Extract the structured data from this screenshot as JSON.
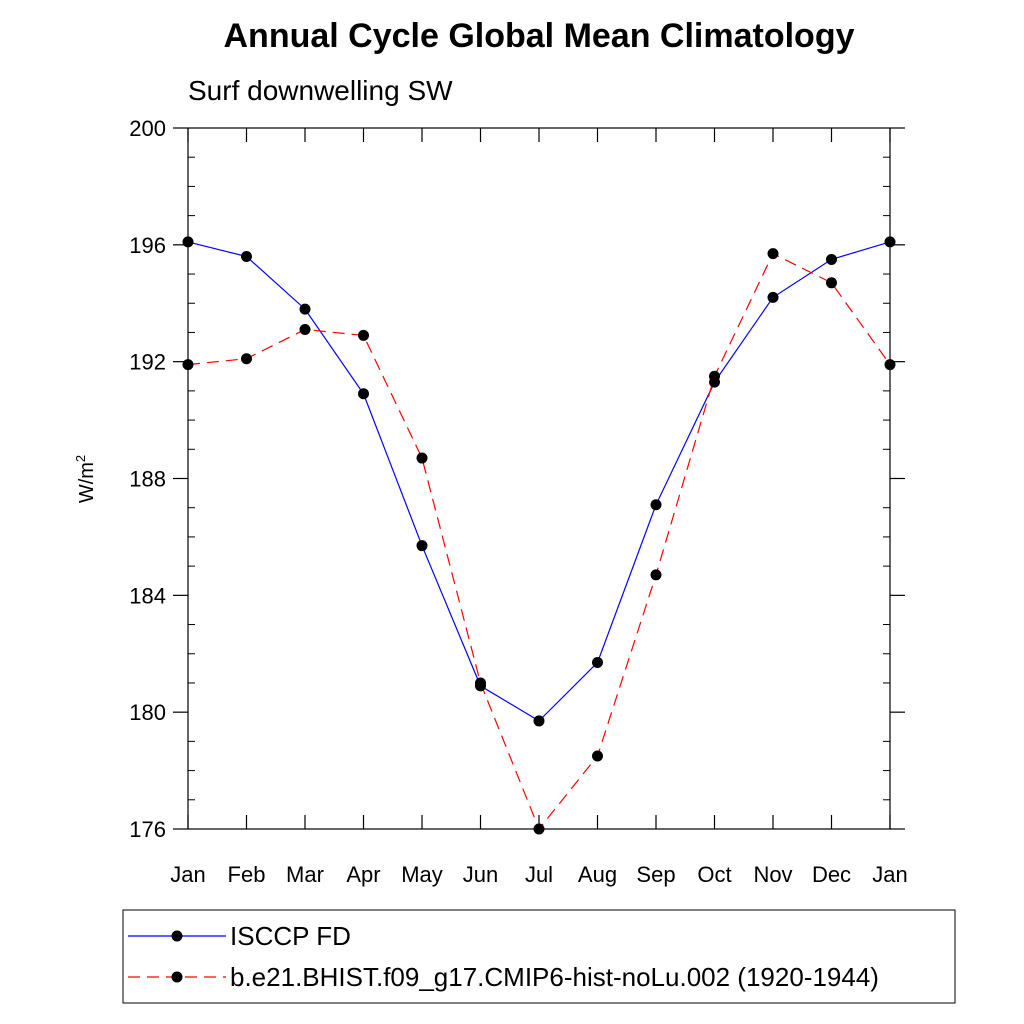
{
  "chart_data": {
    "type": "line",
    "title": "Annual Cycle Global Mean Climatology",
    "subtitle": "Surf downwelling SW",
    "ylabel_base": "W/m",
    "ylabel_sup": "2",
    "xlabel": "",
    "categories": [
      "Jan",
      "Feb",
      "Mar",
      "Apr",
      "May",
      "Jun",
      "Jul",
      "Aug",
      "Sep",
      "Oct",
      "Nov",
      "Dec",
      "Jan"
    ],
    "ylim": [
      176,
      200
    ],
    "yticks": [
      176,
      180,
      184,
      188,
      192,
      196,
      200
    ],
    "grid": false,
    "legend_position": "bottom",
    "series": [
      {
        "name": "ISCCP FD",
        "color": "#0000ff",
        "dash": "solid",
        "marker": "filled-circle",
        "values": [
          196.1,
          195.6,
          193.8,
          190.9,
          185.7,
          180.9,
          179.7,
          181.7,
          187.1,
          191.3,
          194.2,
          195.5,
          196.1
        ]
      },
      {
        "name": "b.e21.BHIST.f09_g17.CMIP6-hist-noLu.002 (1920-1944)",
        "color": "#ff0000",
        "dash": "dashed",
        "marker": "filled-circle",
        "values": [
          191.9,
          192.1,
          193.1,
          192.9,
          188.7,
          181.0,
          176.0,
          178.5,
          184.7,
          191.5,
          195.7,
          194.7,
          191.9
        ]
      }
    ]
  }
}
